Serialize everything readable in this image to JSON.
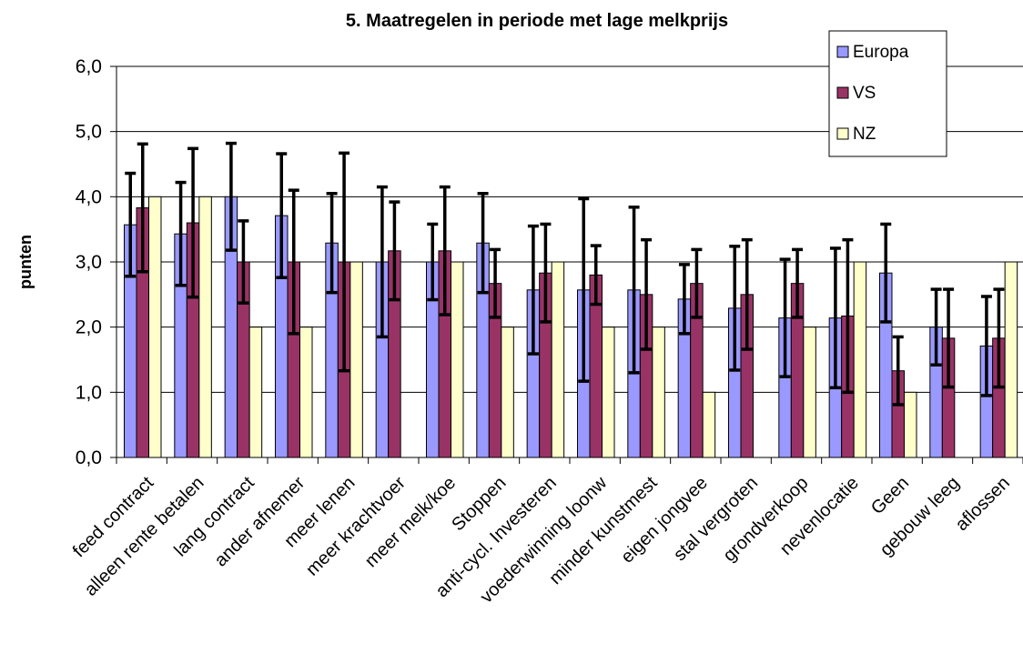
{
  "chart_data": {
    "type": "bar",
    "title": "5. Maatregelen in periode met lage melkprijs",
    "xlabel": "",
    "ylabel": "punten",
    "ylim": [
      0,
      6
    ],
    "yticks": [
      "0,0",
      "1,0",
      "2,0",
      "3,0",
      "4,0",
      "5,0",
      "6,0"
    ],
    "grid": true,
    "legend_position": "top-right",
    "categories": [
      "feed contract",
      "alleen rente betalen",
      "lang contract",
      "ander afnemer",
      "meer lenen",
      "meer krachtvoer",
      "meer melk/koe",
      "Stoppen",
      "anti-cycl. Investeren",
      "voederwinning loonw",
      "minder kunstmest",
      "eigen jongvee",
      "stal vergroten",
      "grondverkoop",
      "nevenlocatie",
      "Geen",
      "gebouw leeg",
      "aflossen"
    ],
    "series": [
      {
        "name": "Europa",
        "color": "#9999ff",
        "values": [
          3.57,
          3.43,
          4.0,
          3.71,
          3.29,
          3.0,
          3.0,
          3.29,
          2.57,
          2.57,
          2.57,
          2.43,
          2.29,
          2.14,
          2.14,
          2.83,
          2.0,
          1.71
        ],
        "errors": [
          0.79,
          0.79,
          0.82,
          0.95,
          0.76,
          1.15,
          0.58,
          0.76,
          0.98,
          1.4,
          1.27,
          0.53,
          0.95,
          0.9,
          1.07,
          0.75,
          0.58,
          0.76
        ]
      },
      {
        "name": "VS",
        "color": "#993366",
        "values": [
          3.83,
          3.6,
          3.0,
          3.0,
          3.0,
          3.17,
          3.17,
          2.67,
          2.83,
          2.8,
          2.5,
          2.67,
          2.5,
          2.67,
          2.17,
          1.33,
          1.83,
          1.83
        ],
        "errors": [
          0.98,
          1.14,
          0.63,
          1.1,
          1.67,
          0.75,
          0.98,
          0.52,
          0.75,
          0.45,
          0.84,
          0.52,
          0.84,
          0.52,
          1.17,
          0.52,
          0.75,
          0.75
        ]
      },
      {
        "name": "NZ",
        "color": "#ffffcc",
        "values": [
          4.0,
          4.0,
          2.0,
          2.0,
          3.0,
          null,
          3.0,
          2.0,
          3.0,
          2.0,
          2.0,
          1.0,
          null,
          2.0,
          3.0,
          1.0,
          null,
          3.0
        ],
        "errors": [
          null,
          null,
          null,
          null,
          null,
          null,
          null,
          null,
          null,
          null,
          null,
          null,
          null,
          null,
          null,
          null,
          null,
          null
        ]
      }
    ]
  }
}
